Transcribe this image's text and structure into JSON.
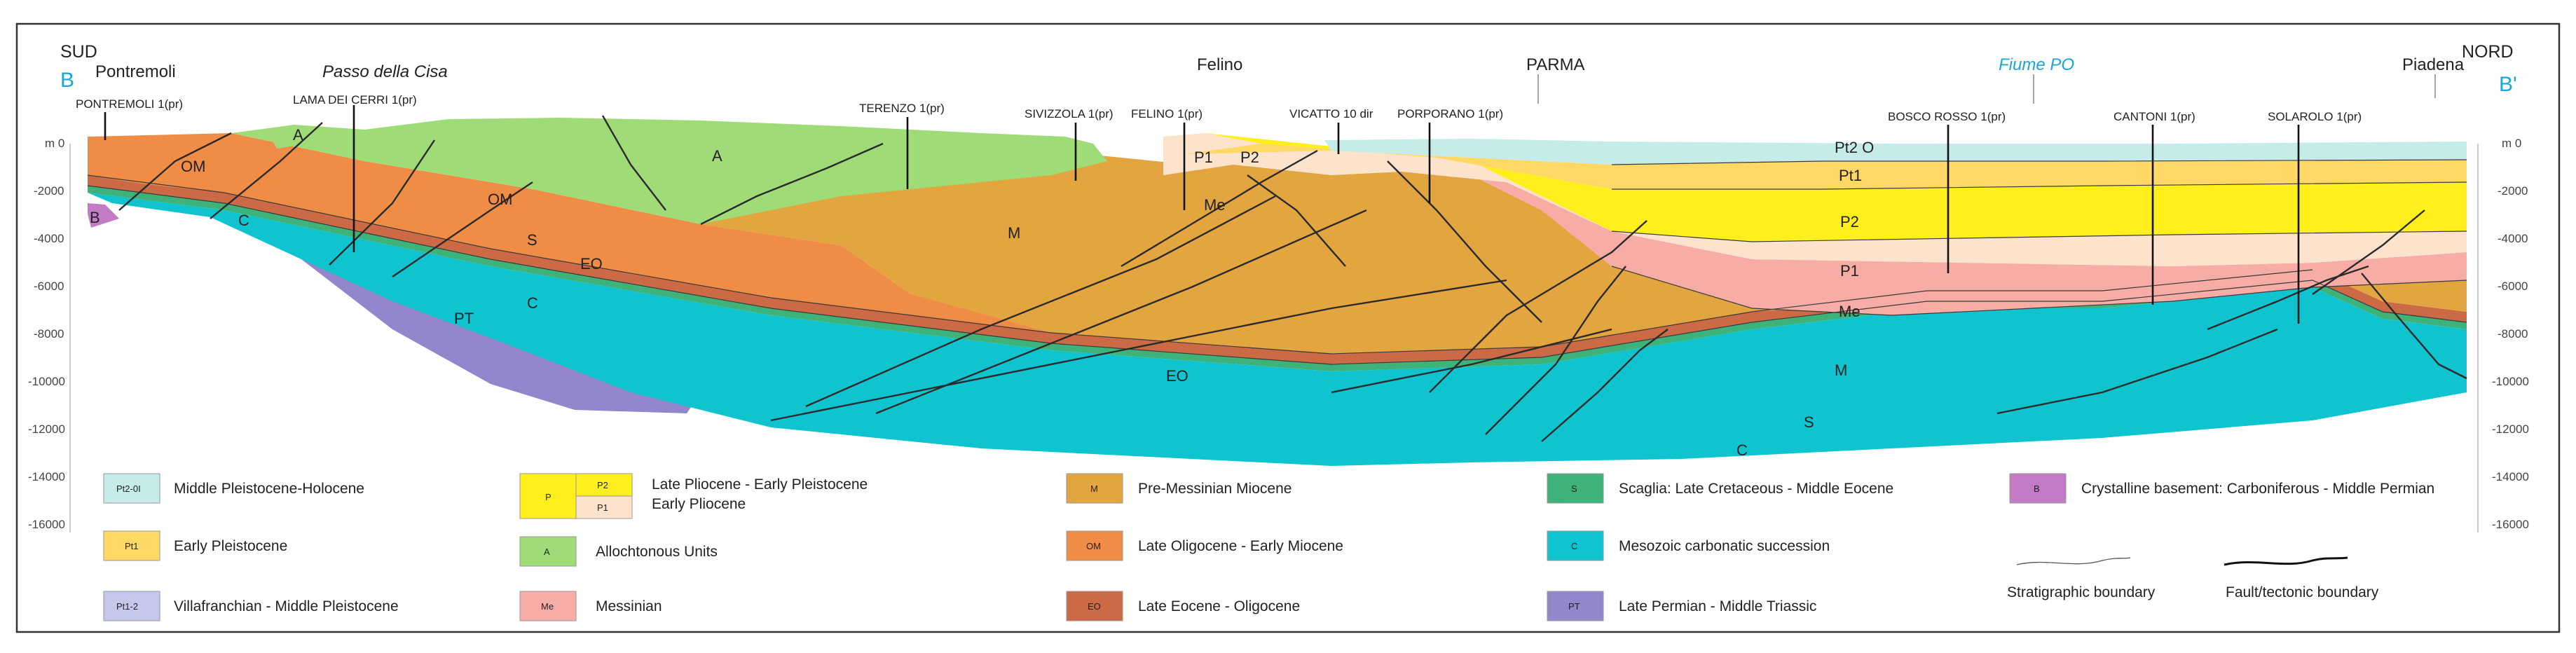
{
  "header": {
    "left_dir": "SUD",
    "left_code": "B",
    "right_dir": "NORD",
    "right_code": "B'"
  },
  "places": [
    {
      "id": "pontremoli",
      "label": "Pontremoli",
      "italic": false,
      "color": "#222222"
    },
    {
      "id": "cisa",
      "label": "Passo della Cisa",
      "italic": true,
      "color": "#222222"
    },
    {
      "id": "felino",
      "label": "Felino",
      "italic": false,
      "color": "#222222"
    },
    {
      "id": "parma",
      "label": "PARMA",
      "italic": false,
      "color": "#222222"
    },
    {
      "id": "po",
      "label": "Fiume PO",
      "italic": true,
      "color": "#1aa6d9"
    },
    {
      "id": "piadena",
      "label": "Piadena",
      "italic": false,
      "color": "#222222"
    }
  ],
  "wells": [
    {
      "id": "pontremoli1",
      "label": "PONTREMOLI 1(pr)"
    },
    {
      "id": "lama",
      "label": "LAMA DEI CERRI 1(pr)"
    },
    {
      "id": "terenzo",
      "label": "TERENZO 1(pr)"
    },
    {
      "id": "sivizzola",
      "label": "SIVIZZOLA 1(pr)"
    },
    {
      "id": "felino1",
      "label": "FELINO 1(pr)"
    },
    {
      "id": "vicatto",
      "label": "VICATTO 10 dir"
    },
    {
      "id": "porporano",
      "label": "PORPORANO 1(pr)"
    },
    {
      "id": "boscorosso",
      "label": "BOSCO ROSSO 1(pr)"
    },
    {
      "id": "cantoni",
      "label": "CANTONI 1(pr)"
    },
    {
      "id": "solarolo",
      "label": "SOLAROLO 1(pr)"
    }
  ],
  "depth_labels_left": [
    "m 0",
    "-2000",
    "-4000",
    "-6000",
    "-8000",
    "-10000",
    "-12000",
    "-14000",
    "-16000"
  ],
  "depth_labels_right": [
    "m 0",
    "-2000",
    "-4000",
    "-6000",
    "-8000",
    "-10000",
    "-12000",
    "-14000",
    "-16000"
  ],
  "unit_labels": [
    {
      "id": "om1",
      "text": "OM"
    },
    {
      "id": "a_small",
      "text": "A"
    },
    {
      "id": "b",
      "text": "B"
    },
    {
      "id": "c1",
      "text": "C"
    },
    {
      "id": "a_big",
      "text": "A"
    },
    {
      "id": "om2",
      "text": "OM"
    },
    {
      "id": "s1",
      "text": "S"
    },
    {
      "id": "eo1",
      "text": "EO"
    },
    {
      "id": "c2",
      "text": "C"
    },
    {
      "id": "pt",
      "text": "PT"
    },
    {
      "id": "m1",
      "text": "M"
    },
    {
      "id": "p1_felino",
      "text": "P1"
    },
    {
      "id": "p2_felino",
      "text": "P2"
    },
    {
      "id": "me_felino",
      "text": "Me"
    },
    {
      "id": "eo2",
      "text": "EO"
    },
    {
      "id": "pt2o",
      "text": "Pt2 O"
    },
    {
      "id": "pt1",
      "text": "Pt1"
    },
    {
      "id": "p2",
      "text": "P2"
    },
    {
      "id": "p1",
      "text": "P1"
    },
    {
      "id": "me",
      "text": "Me"
    },
    {
      "id": "m2",
      "text": "M"
    },
    {
      "id": "s2",
      "text": "S"
    },
    {
      "id": "c3",
      "text": "C"
    }
  ],
  "colors": {
    "pt2o": "#c6ece9",
    "pt1": "#ffd866",
    "pt12": "#c5c8ec",
    "p2": "#ffef1c",
    "p1": "#fde3cc",
    "a": "#9fdc78",
    "m": "#e3a540",
    "me": "#f7aca5",
    "om": "#ef8c45",
    "eo": "#cc6a45",
    "s": "#3db37a",
    "c": "#10c4cf",
    "pt": "#9486cc",
    "b": "#c27bc4"
  },
  "legend": [
    {
      "id": "pt2o",
      "code": "Pt2-0I",
      "label": "Middle Pleistocene-Holocene"
    },
    {
      "id": "pt1",
      "code": "Pt1",
      "label": "Early Pleistocene"
    },
    {
      "id": "pt12",
      "code": "Pt1-2",
      "label": "Villafranchian - Middle Pleistocene"
    },
    {
      "id": "p",
      "code": "P",
      "sub": [
        {
          "code": "P2"
        },
        {
          "code": "P1"
        }
      ],
      "label": "Late Pliocene - Early Pleistocene",
      "label2": "Early Pliocene"
    },
    {
      "id": "a",
      "code": "A",
      "label": "Allochtonous Units"
    },
    {
      "id": "me",
      "code": "Me",
      "label": "Messinian"
    },
    {
      "id": "m",
      "code": "M",
      "label": "Pre-Messinian Miocene"
    },
    {
      "id": "om",
      "code": "OM",
      "label": "Late Oligocene - Early Miocene"
    },
    {
      "id": "eo",
      "code": "EO",
      "label": "Late Eocene - Oligocene"
    },
    {
      "id": "s",
      "code": "S",
      "label": "Scaglia: Late Cretaceous - Middle Eocene"
    },
    {
      "id": "c",
      "code": "C",
      "label": "Mesozoic carbonatic succession"
    },
    {
      "id": "pt",
      "code": "PT",
      "label": "Late Permian - Middle Triassic"
    },
    {
      "id": "b",
      "code": "B",
      "label": "Crystalline basement: Carboniferous - Middle Permian"
    },
    {
      "id": "strat",
      "label": "Stratigraphic boundary"
    },
    {
      "id": "fault",
      "label": "Fault/tectonic boundary"
    }
  ]
}
